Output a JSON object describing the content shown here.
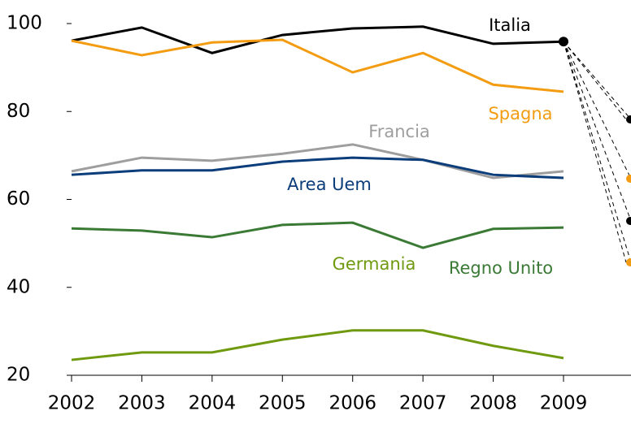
{
  "chart_data": {
    "type": "line",
    "x": [
      2002,
      2003,
      2004,
      2005,
      2006,
      2007,
      2008,
      2009
    ],
    "xlim": [
      2002,
      2009
    ],
    "ylim": [
      20,
      100
    ],
    "yticks": [
      20,
      40,
      60,
      80,
      100
    ],
    "series": [
      {
        "name": "Italia",
        "color": "#000000",
        "values": [
          96.1,
          99.1,
          93.3,
          97.4,
          98.9,
          99.3,
          95.4,
          95.9
        ]
      },
      {
        "name": "Spagna",
        "color": "#f39c12",
        "values": [
          96.1,
          92.8,
          95.7,
          96.3,
          88.9,
          93.3,
          86.1,
          84.5
        ]
      },
      {
        "name": "Francia",
        "color": "#9e9e9e",
        "values": [
          66.4,
          69.5,
          68.8,
          70.4,
          72.5,
          69.0,
          64.9,
          66.4
        ]
      },
      {
        "name": "Area Uem",
        "color": "#0b3d7a",
        "values": [
          65.6,
          66.6,
          66.6,
          68.6,
          69.5,
          69.0,
          65.6,
          64.9
        ]
      },
      {
        "name": "Regno Unito",
        "color": "#3a7a35",
        "values": [
          53.4,
          52.9,
          51.4,
          54.2,
          54.7,
          49.0,
          53.3,
          53.6
        ]
      },
      {
        "name": "Germania",
        "color": "#6f9a10",
        "values": [
          23.5,
          25.2,
          25.2,
          28.1,
          30.2,
          30.2,
          26.7,
          23.9
        ]
      }
    ]
  }
}
